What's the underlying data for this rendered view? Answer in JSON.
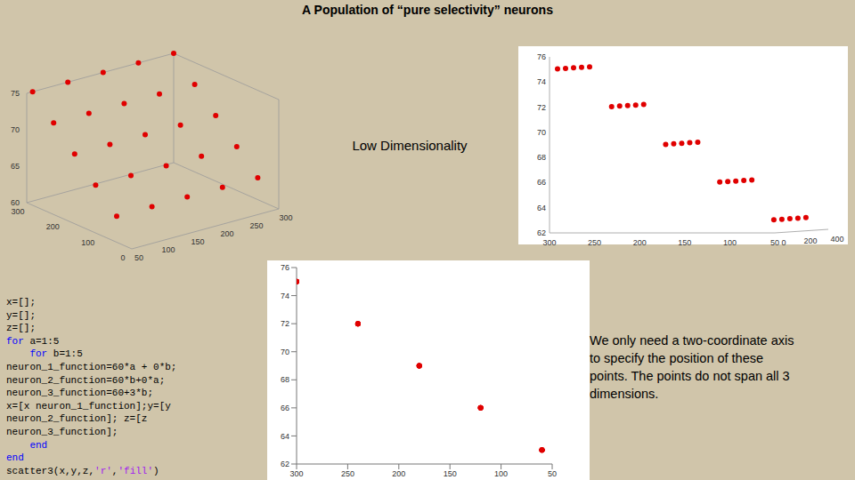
{
  "title": "A Population of “pure selectivity” neurons",
  "annotation": "Low Dimensionality",
  "caption": "We only need a two-coordinate axis to specify the position of these points. The points do not span all 3 dimensions.",
  "code": [
    "x=[];",
    "y=[];",
    "z=[];",
    "for a=1:5",
    "    for b=1:5",
    "neuron_1_function=60*a + 0*b;",
    "neuron_2_function=60*b+0*a;",
    "neuron_3_function=60+3*b;",
    "x=[x neuron_1_function];y=[y",
    "neuron_2_function]; z=[z",
    "neuron_3_function];",
    "    end",
    "end",
    "scatter3(x,y,z,'r','fill')"
  ],
  "chart_data": [
    {
      "type": "scatter3d",
      "x": [
        60,
        60,
        60,
        60,
        60,
        120,
        120,
        120,
        120,
        120,
        180,
        180,
        180,
        180,
        180,
        240,
        240,
        240,
        240,
        240,
        300,
        300,
        300,
        300,
        300
      ],
      "y": [
        60,
        120,
        180,
        240,
        300,
        60,
        120,
        180,
        240,
        300,
        60,
        120,
        180,
        240,
        300,
        60,
        120,
        180,
        240,
        300,
        60,
        120,
        180,
        240,
        300
      ],
      "z": [
        63,
        66,
        69,
        72,
        75,
        63,
        66,
        69,
        72,
        75,
        63,
        66,
        69,
        72,
        75,
        63,
        66,
        69,
        72,
        75,
        63,
        66,
        69,
        72,
        75
      ],
      "xlim": [
        50,
        300
      ],
      "ylim": [
        0,
        300
      ],
      "zlim": [
        60,
        75
      ],
      "xticks": [
        50,
        100,
        150,
        200,
        250,
        300
      ],
      "yticks": [
        0,
        100,
        200,
        300
      ],
      "zticks": [
        60,
        65,
        70,
        75
      ],
      "color": "#e00000",
      "marker": "circle"
    },
    {
      "type": "scatter3d",
      "x": [
        60,
        60,
        60,
        60,
        60,
        120,
        120,
        120,
        120,
        120,
        180,
        180,
        180,
        180,
        180,
        240,
        240,
        240,
        240,
        240,
        300,
        300,
        300,
        300,
        300
      ],
      "y": [
        60,
        120,
        180,
        240,
        300,
        60,
        120,
        180,
        240,
        300,
        60,
        120,
        180,
        240,
        300,
        60,
        120,
        180,
        240,
        300,
        60,
        120,
        180,
        240,
        300
      ],
      "z": [
        63,
        66,
        69,
        72,
        75,
        63,
        66,
        69,
        72,
        75,
        63,
        66,
        69,
        72,
        75,
        63,
        66,
        69,
        72,
        75,
        63,
        66,
        69,
        72,
        75
      ],
      "xlim": [
        0,
        400
      ],
      "ylim": [
        50,
        300
      ],
      "zlim": [
        62,
        76
      ],
      "xticks": [
        0,
        200,
        400
      ],
      "yticks": [
        50,
        100,
        150,
        200,
        250,
        300
      ],
      "zticks": [
        62,
        64,
        66,
        68,
        70,
        72,
        74,
        76
      ],
      "color": "#e00000",
      "marker": "circle"
    },
    {
      "type": "scatter",
      "x": [
        60,
        120,
        180,
        240,
        300,
        60,
        120,
        180,
        240,
        300,
        60,
        120,
        180,
        240,
        300,
        60,
        120,
        180,
        240,
        300,
        60,
        120,
        180,
        240,
        300
      ],
      "y": [
        63,
        66,
        69,
        72,
        75,
        63,
        66,
        69,
        72,
        75,
        63,
        66,
        69,
        72,
        75,
        63,
        66,
        69,
        72,
        75,
        63,
        66,
        69,
        72,
        75
      ],
      "xlim": [
        300,
        50
      ],
      "ylim": [
        62,
        76
      ],
      "xticks": [
        300,
        250,
        200,
        150,
        100,
        50
      ],
      "yticks": [
        62,
        64,
        66,
        68,
        70,
        72,
        74,
        76
      ],
      "color": "#e00000",
      "marker": "circle",
      "grid": false
    }
  ]
}
